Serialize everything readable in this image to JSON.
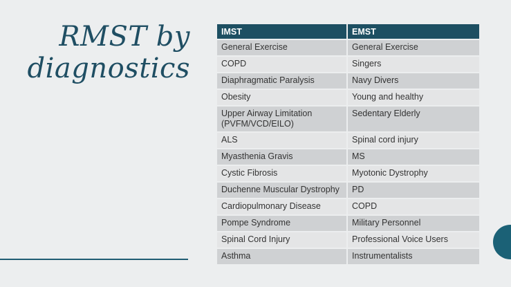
{
  "slide": {
    "title_line1": "RMST by",
    "title_line2": "diagnostics"
  },
  "table": {
    "headers": [
      "IMST",
      "EMST"
    ],
    "rows": [
      [
        "General Exercise",
        "General Exercise"
      ],
      [
        "COPD",
        "Singers"
      ],
      [
        "Diaphragmatic Paralysis",
        "Navy Divers"
      ],
      [
        "Obesity",
        "Young and healthy"
      ],
      [
        "Upper Airway Limitation\n(PVFM/VCD/EILO)",
        "Sedentary Elderly"
      ],
      [
        "ALS",
        "Spinal cord injury"
      ],
      [
        "Myasthenia Gravis",
        "MS"
      ],
      [
        "Cystic Fibrosis",
        "Myotonic Dystrophy"
      ],
      [
        "Duchenne Muscular Dystrophy",
        "PD"
      ],
      [
        "Cardiopulmonary Disease",
        "COPD"
      ],
      [
        "Pompe Syndrome",
        "Military Personnel"
      ],
      [
        "Spinal Cord Injury",
        "Professional Voice Users"
      ],
      [
        "Asthma",
        "Instrumentalists"
      ]
    ]
  }
}
